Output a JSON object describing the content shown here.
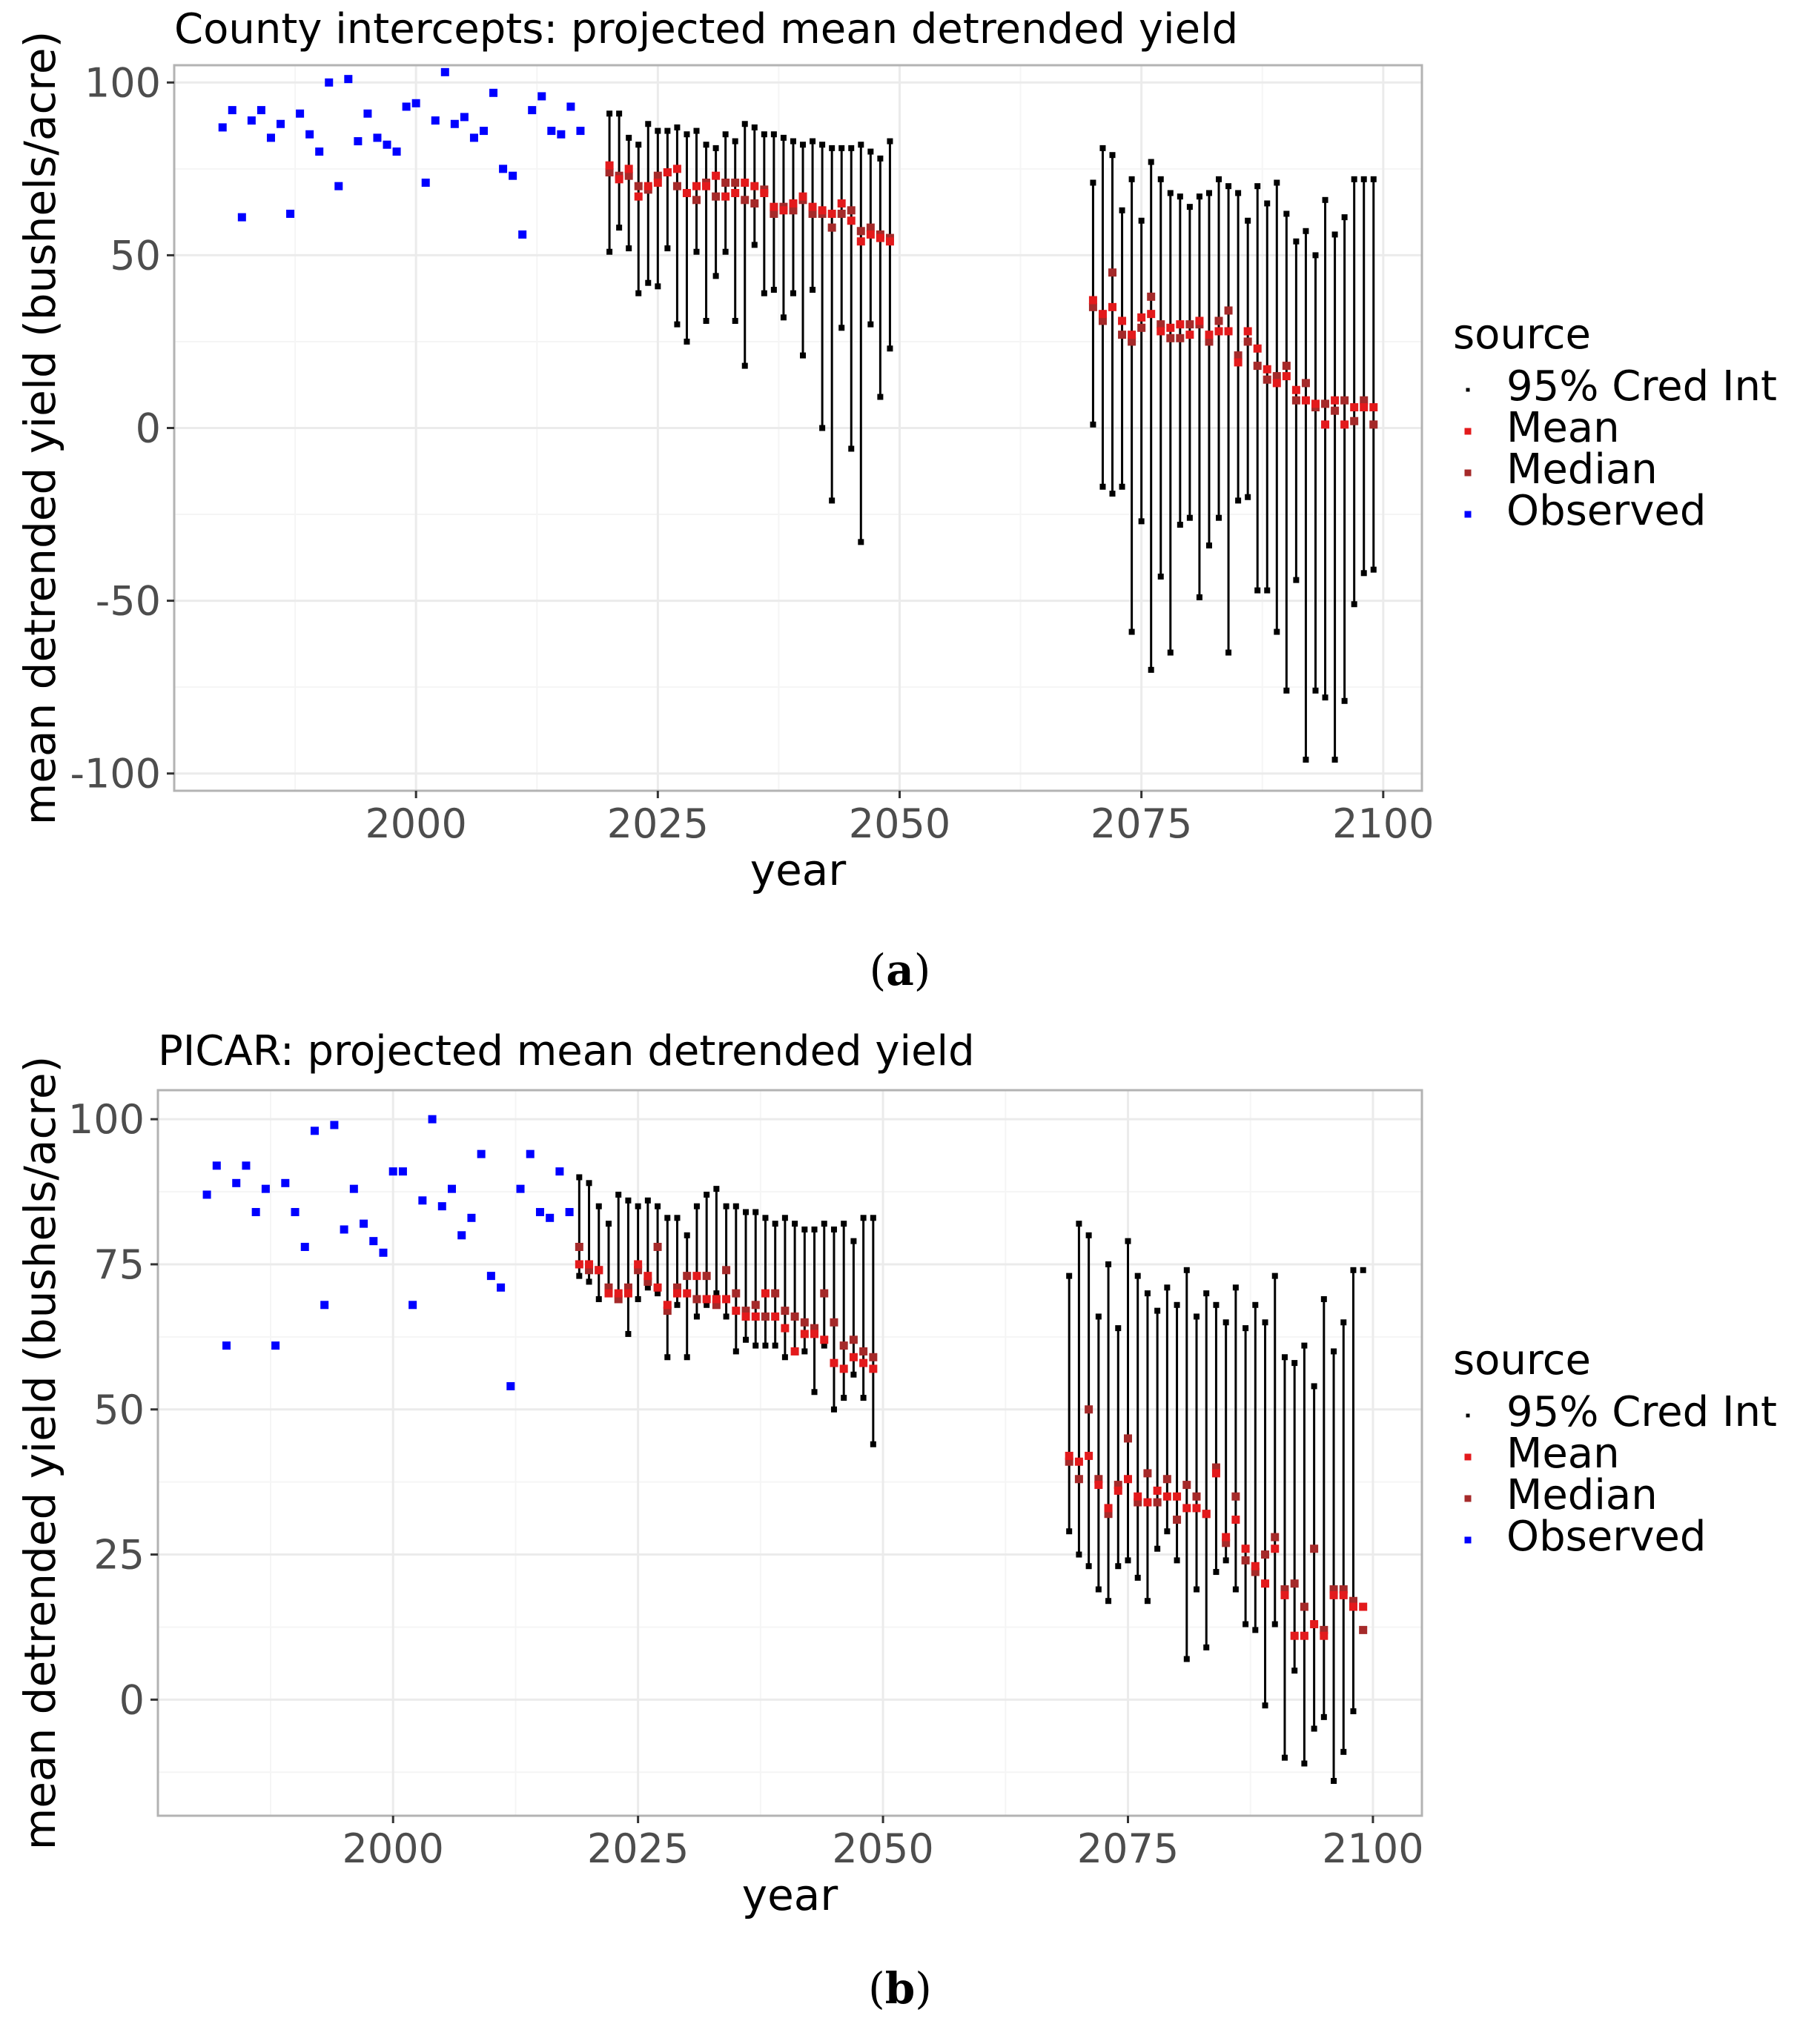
{
  "charts_meta": {
    "legend_title": "source",
    "legend_items": [
      {
        "label": "95% Cred Int",
        "color": "#000000"
      },
      {
        "label": "Mean",
        "color": "#e31a1c"
      },
      {
        "label": "Median",
        "color": "#a52a2a"
      },
      {
        "label": "Observed",
        "color": "#0000ff"
      }
    ],
    "colors": {
      "ci": "#000000",
      "mean": "#e31a1c",
      "median": "#a52a2a",
      "observed": "#0000ff",
      "grid": "#ebebeb",
      "grid_minor": "#f5f5f5",
      "panel_border": "#b3b3b3",
      "axis_text": "#4d4d4d"
    }
  },
  "chart_data": [
    {
      "id": "a",
      "type": "scatter",
      "caption": "a",
      "title": "County intercepts: projected mean detrended yield",
      "xlabel": "year",
      "ylabel": "mean detrended yield (bushels/acre)",
      "xlim": [
        1975,
        2104
      ],
      "ylim": [
        -105,
        105
      ],
      "xticks": [
        2000,
        2025,
        2050,
        2075,
        2100
      ],
      "xtick_labels": [
        "2000",
        "2025",
        "2050",
        "2075",
        "2100"
      ],
      "yticks": [
        -100,
        -50,
        0,
        50,
        100
      ],
      "ytick_labels": [
        "-100",
        "-50",
        "0",
        "50",
        "100"
      ],
      "legend_position": "right",
      "observed": {
        "x": [
          1980,
          1981,
          1982,
          1983,
          1984,
          1985,
          1986,
          1987,
          1988,
          1989,
          1990,
          1991,
          1992,
          1993,
          1994,
          1995,
          1996,
          1997,
          1998,
          1999,
          2000,
          2001,
          2002,
          2003,
          2004,
          2005,
          2006,
          2007,
          2008,
          2009,
          2010,
          2011,
          2012,
          2013,
          2014,
          2015,
          2016,
          2017,
          2018
        ],
        "y": [
          87,
          92,
          61,
          89,
          92,
          84,
          88,
          62,
          91,
          85,
          80,
          100,
          70,
          101,
          83,
          91,
          84,
          82,
          80,
          93,
          94,
          71,
          89,
          103,
          88,
          90,
          84,
          86,
          97,
          75,
          73,
          56,
          92,
          96,
          86,
          85,
          93,
          86,
          null
        ]
      },
      "projection_1": {
        "x": [
          2020,
          2021,
          2022,
          2023,
          2024,
          2025,
          2026,
          2027,
          2028,
          2029,
          2030,
          2031,
          2032,
          2033,
          2034,
          2035,
          2036,
          2037,
          2038,
          2039,
          2040,
          2041,
          2042,
          2043,
          2044,
          2045,
          2046,
          2047,
          2048,
          2049
        ],
        "mean": [
          76,
          72,
          75,
          67,
          70,
          71,
          74,
          75,
          68,
          70,
          70,
          73,
          67,
          68,
          71,
          70,
          68,
          64,
          63,
          65,
          67,
          64,
          63,
          62,
          65,
          60,
          54,
          56,
          55,
          54
        ],
        "median": [
          74,
          73,
          73,
          70,
          69,
          73,
          74,
          70,
          68,
          66,
          71,
          67,
          71,
          71,
          66,
          65,
          69,
          62,
          64,
          63,
          66,
          62,
          62,
          58,
          62,
          63,
          57,
          58,
          56,
          55
        ],
        "lower": [
          51,
          58,
          52,
          39,
          42,
          41,
          52,
          30,
          25,
          51,
          31,
          44,
          51,
          31,
          18,
          53,
          39,
          40,
          32,
          39,
          21,
          40,
          0,
          -21,
          29,
          -6,
          -33,
          30,
          9,
          23
        ],
        "upper": [
          91,
          91,
          84,
          82,
          88,
          86,
          86,
          87,
          85,
          86,
          82,
          81,
          85,
          83,
          88,
          87,
          85,
          85,
          84,
          83,
          82,
          83,
          82,
          81,
          81,
          81,
          82,
          80,
          78,
          83
        ]
      },
      "projection_2": {
        "x": [
          2070,
          2071,
          2072,
          2073,
          2074,
          2075,
          2076,
          2077,
          2078,
          2079,
          2080,
          2081,
          2082,
          2083,
          2084,
          2085,
          2086,
          2087,
          2088,
          2089,
          2090,
          2091,
          2092,
          2093,
          2094,
          2095,
          2096,
          2097,
          2098,
          2099
        ],
        "mean": [
          37,
          33,
          35,
          31,
          27,
          32,
          33,
          28,
          29,
          30,
          27,
          31,
          27,
          28,
          28,
          19,
          28,
          23,
          17,
          13,
          15,
          11,
          8,
          7,
          1,
          8,
          1,
          6,
          6,
          6
        ],
        "median": [
          35,
          31,
          45,
          27,
          25,
          29,
          38,
          30,
          26,
          26,
          30,
          30,
          25,
          31,
          34,
          21,
          25,
          18,
          14,
          15,
          18,
          8,
          13,
          6,
          7,
          5,
          8,
          2,
          8,
          1
        ],
        "lower": [
          1,
          -17,
          -19,
          -17,
          -59,
          -27,
          -70,
          -43,
          -65,
          -28,
          -26,
          -49,
          -34,
          -26,
          -65,
          -21,
          -20,
          -47,
          -47,
          -59,
          -76,
          -44,
          -96,
          -76,
          -78,
          -96,
          -79,
          -51,
          -42,
          -41
        ],
        "upper": [
          71,
          81,
          79,
          63,
          72,
          60,
          77,
          72,
          68,
          67,
          64,
          67,
          68,
          72,
          70,
          68,
          60,
          70,
          65,
          71,
          62,
          54,
          57,
          50,
          66,
          56,
          61,
          72,
          72,
          72
        ]
      }
    },
    {
      "id": "b",
      "type": "scatter",
      "caption": "b",
      "title": "PICAR: projected mean detrended yield",
      "xlabel": "year",
      "ylabel": "mean detrended yield (bushels/acre)",
      "xlim": [
        1976,
        2105
      ],
      "ylim": [
        -20,
        105
      ],
      "xticks": [
        2000,
        2025,
        2050,
        2075,
        2100
      ],
      "xtick_labels": [
        "2000",
        "2025",
        "2050",
        "2075",
        "2100"
      ],
      "yticks": [
        0,
        25,
        50,
        75,
        100
      ],
      "ytick_labels": [
        "0",
        "25",
        "50",
        "75",
        "100"
      ],
      "legend_position": "right",
      "observed": {
        "x": [
          1981,
          1982,
          1983,
          1984,
          1985,
          1986,
          1987,
          1988,
          1989,
          1990,
          1991,
          1992,
          1993,
          1994,
          1995,
          1996,
          1997,
          1998,
          1999,
          2000,
          2001,
          2002,
          2003,
          2004,
          2005,
          2006,
          2007,
          2008,
          2009,
          2010,
          2011,
          2012,
          2013,
          2014,
          2015,
          2016,
          2017,
          2018
        ],
        "y": [
          87,
          92,
          61,
          89,
          92,
          84,
          88,
          61,
          89,
          84,
          78,
          98,
          68,
          99,
          81,
          88,
          82,
          79,
          77,
          91,
          91,
          68,
          86,
          100,
          85,
          88,
          80,
          83,
          94,
          73,
          71,
          54,
          88,
          94,
          84,
          83,
          91,
          84
        ]
      },
      "projection_1": {
        "x": [
          2019,
          2020,
          2021,
          2022,
          2023,
          2024,
          2025,
          2026,
          2027,
          2028,
          2029,
          2030,
          2031,
          2032,
          2033,
          2034,
          2035,
          2036,
          2037,
          2038,
          2039,
          2040,
          2041,
          2042,
          2043,
          2044,
          2045,
          2046,
          2047,
          2048,
          2049
        ],
        "mean": [
          75,
          75,
          74,
          70,
          70,
          70,
          75,
          73,
          71,
          68,
          70,
          70,
          73,
          69,
          69,
          69,
          67,
          66,
          66,
          70,
          66,
          64,
          60,
          63,
          63,
          62,
          58,
          57,
          59,
          58,
          57
        ],
        "median": [
          78,
          74,
          74,
          71,
          69,
          71,
          74,
          72,
          78,
          67,
          71,
          73,
          69,
          73,
          68,
          74,
          70,
          67,
          68,
          66,
          70,
          67,
          66,
          65,
          64,
          70,
          65,
          61,
          62,
          60,
          59
        ],
        "lower": [
          73,
          72,
          69,
          70,
          70,
          63,
          69,
          71,
          70,
          59,
          68,
          59,
          66,
          68,
          70,
          66,
          60,
          62,
          61,
          61,
          61,
          59,
          60,
          60,
          53,
          61,
          50,
          52,
          56,
          52,
          44
        ],
        "upper": [
          90,
          89,
          85,
          82,
          87,
          86,
          85,
          86,
          85,
          83,
          83,
          80,
          85,
          87,
          88,
          85,
          85,
          84,
          84,
          83,
          82,
          83,
          82,
          81,
          81,
          82,
          81,
          82,
          79,
          83,
          83
        ]
      },
      "projection_2": {
        "x": [
          2069,
          2070,
          2071,
          2072,
          2073,
          2074,
          2075,
          2076,
          2077,
          2078,
          2079,
          2080,
          2081,
          2082,
          2083,
          2084,
          2085,
          2086,
          2087,
          2088,
          2089,
          2090,
          2091,
          2092,
          2093,
          2094,
          2095,
          2096,
          2097,
          2098,
          2099
        ],
        "mean": [
          42,
          41,
          42,
          37,
          33,
          36,
          38,
          35,
          34,
          36,
          35,
          35,
          33,
          33,
          32,
          39,
          28,
          31,
          26,
          23,
          20,
          26,
          18,
          11,
          11,
          13,
          11,
          18,
          18,
          16,
          16
        ],
        "median": [
          41,
          38,
          50,
          38,
          32,
          37,
          45,
          34,
          39,
          34,
          38,
          31,
          37,
          35,
          32,
          40,
          27,
          35,
          24,
          22,
          25,
          28,
          19,
          20,
          16,
          26,
          12,
          19,
          19,
          17,
          12
        ],
        "lower": [
          29,
          25,
          23,
          19,
          17,
          23,
          24,
          21,
          17,
          26,
          29,
          24,
          7,
          19,
          9,
          22,
          24,
          19,
          13,
          12,
          -1,
          13,
          -10,
          5,
          -11,
          -5,
          -3,
          -14,
          -9,
          -2,
          null
        ],
        "upper": [
          73,
          82,
          80,
          66,
          75,
          64,
          79,
          73,
          70,
          67,
          71,
          68,
          74,
          66,
          70,
          68,
          65,
          71,
          64,
          68,
          65,
          73,
          59,
          58,
          61,
          54,
          69,
          60,
          65,
          74,
          74
        ]
      }
    }
  ]
}
